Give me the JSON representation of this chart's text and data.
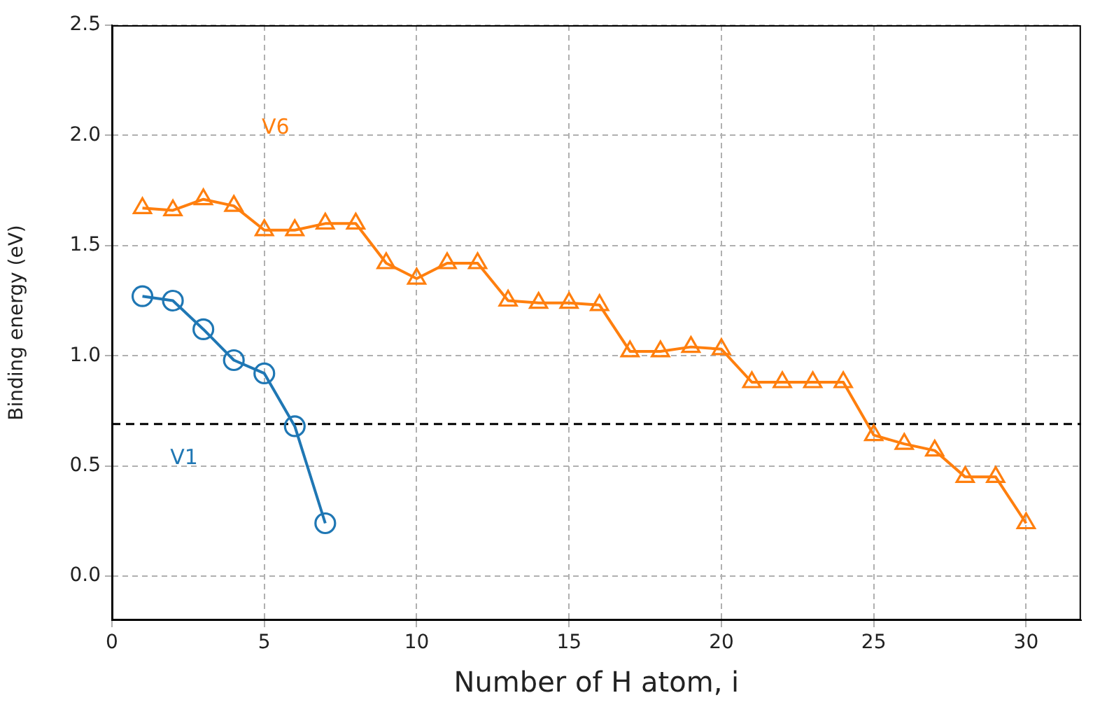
{
  "chart_data": {
    "type": "line",
    "xlabel": "Number of H atom, i",
    "ylabel": "Binding energy (eV)",
    "xlim": [
      0,
      31.8
    ],
    "xticks": [
      0,
      5,
      10,
      15,
      20,
      25,
      30
    ],
    "ylim": [
      -0.2,
      2.5
    ],
    "yticks": [
      {
        "value": 0,
        "label": "0.0"
      },
      0.5,
      {
        "value": 1,
        "label": "1.0"
      },
      1.5,
      {
        "value": 2,
        "label": "2.0"
      },
      2.5
    ],
    "grid": true,
    "legend": false,
    "line_style": "solid",
    "series": [
      {
        "name": "V1",
        "color": "#1f77b4",
        "marker": "circle",
        "x": [
          1,
          2,
          3,
          4,
          5,
          6,
          7
        ],
        "values": [
          1.27,
          1.25,
          1.12,
          0.98,
          0.92,
          0.68,
          0.24
        ]
      },
      {
        "name": "V6",
        "color": "#ff7f0e",
        "marker": "triangle",
        "x": [
          1,
          2,
          3,
          4,
          5,
          6,
          7,
          8,
          9,
          10,
          11,
          12,
          13,
          14,
          15,
          16,
          17,
          18,
          19,
          20,
          21,
          22,
          23,
          24,
          25,
          26,
          27,
          28,
          29,
          30
        ],
        "values": [
          1.67,
          1.66,
          1.71,
          1.68,
          1.57,
          1.57,
          1.6,
          1.6,
          1.42,
          1.35,
          1.42,
          1.42,
          1.25,
          1.24,
          1.24,
          1.23,
          1.02,
          1.02,
          1.04,
          1.03,
          0.88,
          0.88,
          0.88,
          0.88,
          0.64,
          0.6,
          0.57,
          0.45,
          0.45,
          0.24
        ]
      }
    ],
    "ref_lines": [
      {
        "axis": "y",
        "value": 0.69,
        "color": "#000000",
        "line_style": "dashed"
      }
    ]
  }
}
